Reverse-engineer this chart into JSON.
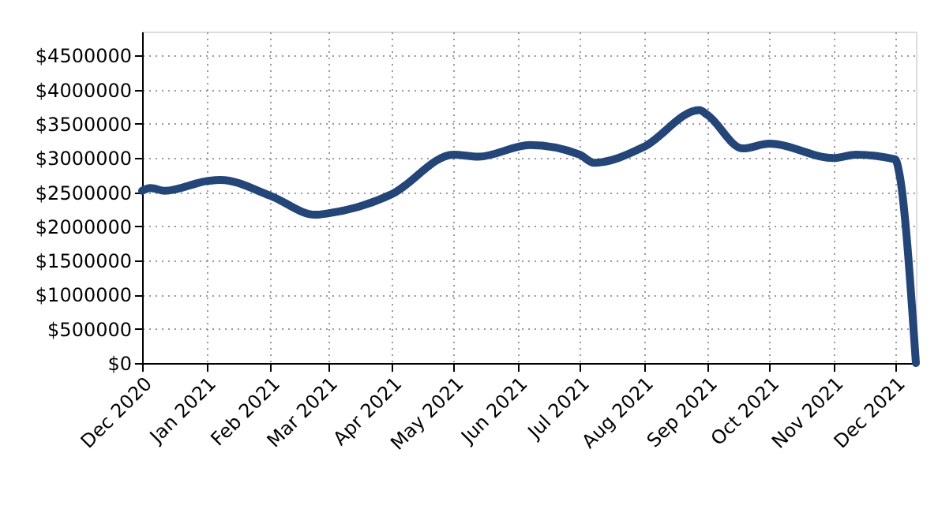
{
  "chart_data": {
    "type": "line",
    "x": [
      "2020-12-01",
      "2020-12-05",
      "2020-12-12",
      "2021-01-01",
      "2021-01-08",
      "2021-02-01",
      "2021-02-23",
      "2021-03-01",
      "2021-04-01",
      "2021-05-01",
      "2021-05-13",
      "2021-06-07",
      "2021-07-01",
      "2021-07-08",
      "2021-08-01",
      "2021-08-28",
      "2021-09-01",
      "2021-09-18",
      "2021-10-01",
      "2021-11-01",
      "2021-11-12",
      "2021-12-01",
      "2021-12-03",
      "2021-12-11"
    ],
    "series": [
      {
        "color": "#234578",
        "values": [
          2520000,
          2560000,
          2520000,
          2660000,
          2680000,
          2450000,
          2170000,
          2190000,
          2470000,
          3050000,
          3020000,
          3190000,
          3050000,
          2930000,
          3160000,
          3700000,
          3630000,
          3140000,
          3210000,
          3000000,
          3050000,
          2980000,
          2770000,
          0
        ]
      }
    ],
    "xlim": [
      "2020-12-01",
      "2021-12-11"
    ],
    "xticks": [
      {
        "value": "2020-12-01",
        "label": "Dec 2020"
      },
      {
        "value": "2021-01-01",
        "label": "Jan 2021"
      },
      {
        "value": "2021-02-01",
        "label": "Feb 2021"
      },
      {
        "value": "2021-03-01",
        "label": "Mar 2021"
      },
      {
        "value": "2021-04-01",
        "label": "Apr 2021"
      },
      {
        "value": "2021-05-01",
        "label": "May 2021"
      },
      {
        "value": "2021-06-01",
        "label": "Jun 2021"
      },
      {
        "value": "2021-07-01",
        "label": "Jul 2021"
      },
      {
        "value": "2021-08-01",
        "label": "Aug 2021"
      },
      {
        "value": "2021-09-01",
        "label": "Sep 2021"
      },
      {
        "value": "2021-10-01",
        "label": "Oct 2021"
      },
      {
        "value": "2021-11-01",
        "label": "Nov 2021"
      },
      {
        "value": "2021-12-01",
        "label": "Dec 2021"
      }
    ],
    "ylim": [
      0,
      4850000
    ],
    "yticks": [
      {
        "value": 0,
        "label": "$0"
      },
      {
        "value": 500000,
        "label": "$500000"
      },
      {
        "value": 1000000,
        "label": "$1000000"
      },
      {
        "value": 1500000,
        "label": "$1500000"
      },
      {
        "value": 2000000,
        "label": "$2000000"
      },
      {
        "value": 2500000,
        "label": "$2500000"
      },
      {
        "value": 3000000,
        "label": "$3000000"
      },
      {
        "value": 3500000,
        "label": "$3500000"
      },
      {
        "value": 4000000,
        "label": "$4000000"
      },
      {
        "value": 4500000,
        "label": "$4500000"
      }
    ],
    "grid": true,
    "legend": false,
    "marker": "none",
    "line_style": "solid"
  }
}
